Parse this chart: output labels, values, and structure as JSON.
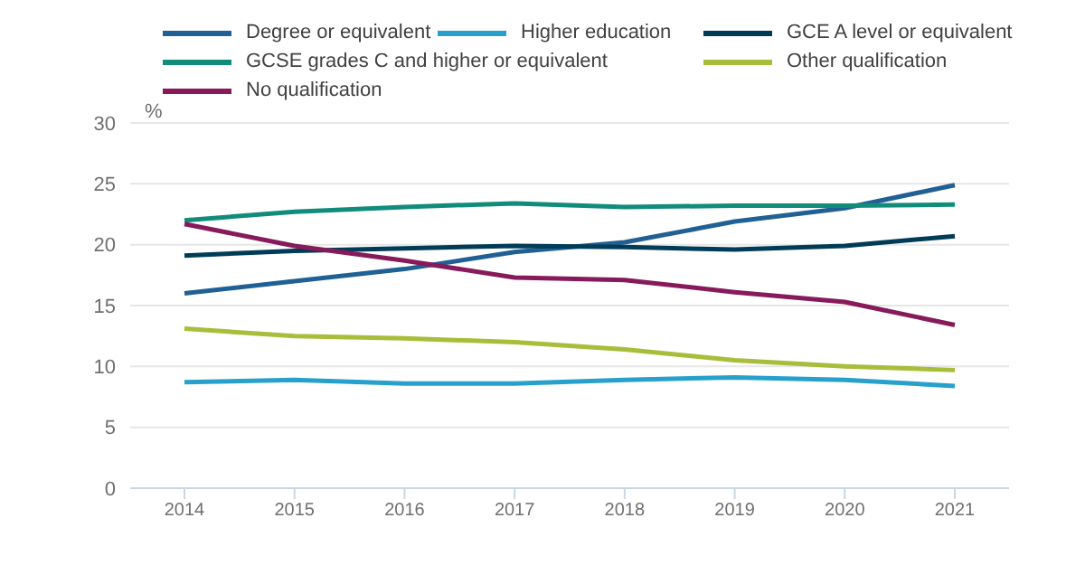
{
  "chart_data": {
    "type": "line",
    "ylabel": "%",
    "categories": [
      "2014",
      "2015",
      "2016",
      "2017",
      "2018",
      "2019",
      "2020",
      "2021"
    ],
    "series": [
      {
        "name": "Degree or equivalent",
        "color": "#206095",
        "values": [
          16,
          17,
          18,
          19.4,
          20.2,
          21.9,
          23,
          24.9
        ]
      },
      {
        "name": "Higher education",
        "color": "#27a0cc",
        "values": [
          8.7,
          8.9,
          8.6,
          8.6,
          8.9,
          9.1,
          8.9,
          8.4
        ]
      },
      {
        "name": "GCE A level or equivalent",
        "color": "#003c57",
        "values": [
          19.1,
          19.5,
          19.7,
          19.9,
          19.8,
          19.6,
          19.9,
          20.7
        ]
      },
      {
        "name": "GCSE grades C and higher or equivalent",
        "color": "#118c7b",
        "values": [
          22,
          22.7,
          23.1,
          23.4,
          23.1,
          23.2,
          23.2,
          23.3
        ]
      },
      {
        "name": "Other qualification",
        "color": "#a8bd3a",
        "values": [
          13.1,
          12.5,
          12.3,
          12,
          11.4,
          10.5,
          10,
          9.7
        ]
      },
      {
        "name": "No qualification",
        "color": "#871a5b",
        "values": [
          21.7,
          19.9,
          18.7,
          17.3,
          17.1,
          16.1,
          15.3,
          13.4
        ]
      }
    ],
    "ylim": [
      0,
      30
    ],
    "yticks": [
      0,
      5,
      10,
      15,
      20,
      25,
      30
    ],
    "grid": "y",
    "legend": "top",
    "marker": "none",
    "line_style": "solid"
  }
}
